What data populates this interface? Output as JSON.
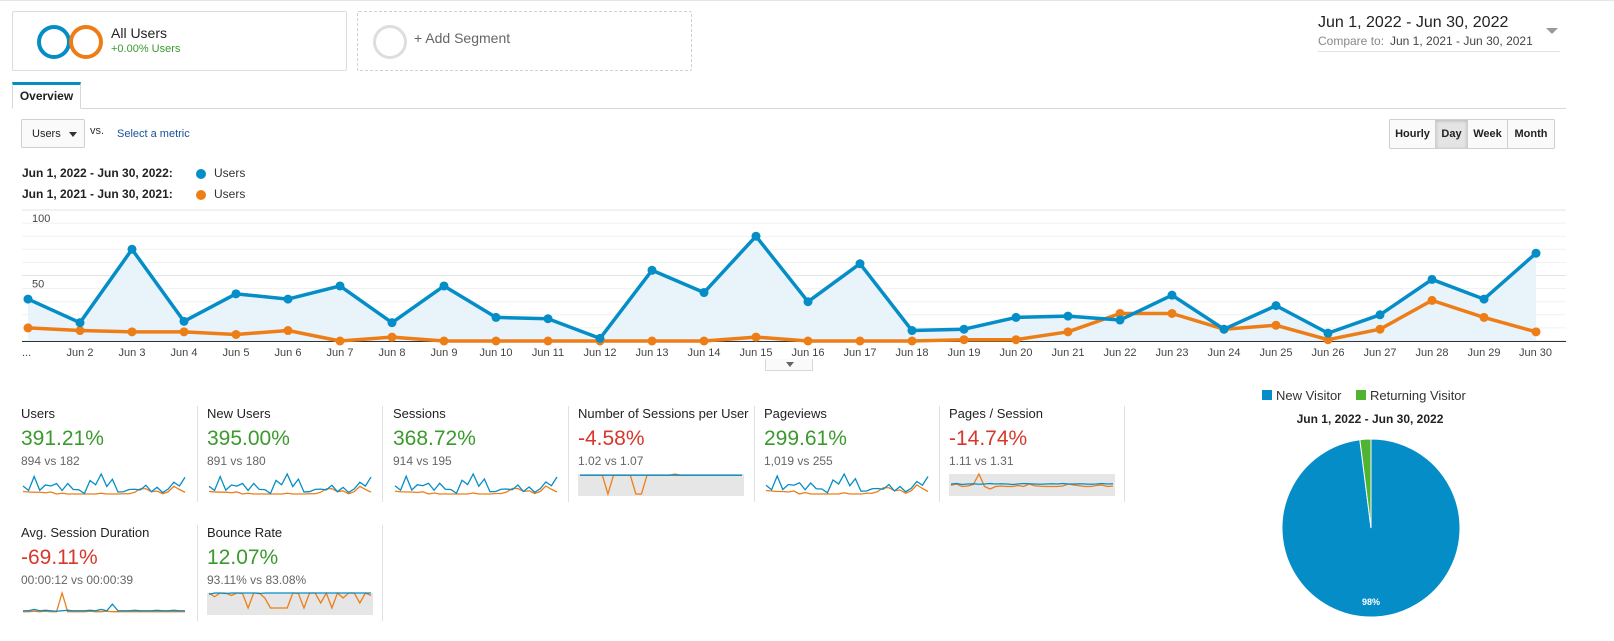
{
  "segments": {
    "all_users": {
      "title": "All Users",
      "subtitle": "+0.00% Users"
    },
    "add_segment": {
      "label": "+ Add Segment"
    }
  },
  "date_range": {
    "main": "Jun 1, 2022 - Jun 30, 2022",
    "compare_label": "Compare to:",
    "compare_value": "Jun 1, 2021 - Jun 30, 2021"
  },
  "tabs": [
    {
      "label": "Overview",
      "active": true
    }
  ],
  "metric_selector": {
    "selected": "Users",
    "vs": "vs.",
    "select_link": "Select a metric"
  },
  "time_buttons": [
    {
      "label": "Hourly",
      "active": false
    },
    {
      "label": "Day",
      "active": true
    },
    {
      "label": "Week",
      "active": false
    },
    {
      "label": "Month",
      "active": false
    }
  ],
  "legend": [
    {
      "range": "Jun 1, 2022 - Jun 30, 2022:",
      "series": "Users",
      "color": "#058dc7"
    },
    {
      "range": "Jun 1, 2021 - Jun 30, 2021:",
      "series": "Users",
      "color": "#ed7e17"
    }
  ],
  "chart_data": {
    "type": "area",
    "categories": [
      "...",
      "Jun 2",
      "Jun 3",
      "Jun 4",
      "Jun 5",
      "Jun 6",
      "Jun 7",
      "Jun 8",
      "Jun 9",
      "Jun 10",
      "Jun 11",
      "Jun 12",
      "Jun 13",
      "Jun 14",
      "Jun 15",
      "Jun 16",
      "Jun 17",
      "Jun 18",
      "Jun 19",
      "Jun 20",
      "Jun 21",
      "Jun 22",
      "Jun 23",
      "Jun 24",
      "Jun 25",
      "Jun 26",
      "Jun 27",
      "Jun 28",
      "Jun 29",
      "Jun 30"
    ],
    "yticks": [
      50,
      100
    ],
    "ylim": [
      0,
      100
    ],
    "series": [
      {
        "name": "Users",
        "color": "#058dc7",
        "values": [
          32,
          14,
          70,
          15,
          36,
          32,
          42,
          14,
          42,
          18,
          17,
          2,
          54,
          37,
          80,
          30,
          59,
          8,
          9,
          18,
          19,
          16,
          35,
          9,
          27,
          6,
          20,
          47,
          32,
          67
        ]
      },
      {
        "name": "Users",
        "color": "#ed7e17",
        "values": [
          10,
          8,
          7,
          7,
          5,
          8,
          0,
          3,
          0,
          0,
          0,
          0,
          0,
          0,
          3,
          0,
          0,
          0,
          1,
          1,
          7,
          21,
          21,
          9,
          12,
          1,
          9,
          31,
          18,
          7
        ]
      }
    ]
  },
  "metric_tiles": [
    {
      "name": "Users",
      "pct": "391.21%",
      "trend": "up",
      "compare": "894 vs 182",
      "spark_a": [
        32,
        14,
        70,
        15,
        36,
        32,
        42,
        14,
        42,
        18,
        17,
        2,
        54,
        37,
        80,
        30,
        59,
        8,
        9,
        18,
        19,
        16,
        35,
        9,
        27,
        6,
        20,
        47,
        32,
        67
      ],
      "spark_b": [
        10,
        8,
        7,
        7,
        5,
        8,
        0,
        3,
        0,
        0,
        0,
        0,
        0,
        0,
        3,
        0,
        0,
        0,
        1,
        1,
        7,
        21,
        21,
        9,
        12,
        1,
        9,
        31,
        18,
        7
      ],
      "shade": false
    },
    {
      "name": "New Users",
      "pct": "395.00%",
      "trend": "up",
      "compare": "891 vs 180",
      "spark_a": [
        30,
        14,
        68,
        15,
        35,
        31,
        41,
        14,
        41,
        18,
        17,
        2,
        53,
        36,
        78,
        29,
        58,
        8,
        9,
        18,
        19,
        16,
        34,
        9,
        26,
        6,
        20,
        46,
        31,
        66
      ],
      "spark_b": [
        10,
        8,
        7,
        7,
        5,
        8,
        0,
        3,
        0,
        0,
        0,
        0,
        0,
        0,
        3,
        0,
        0,
        0,
        1,
        1,
        7,
        20,
        21,
        9,
        12,
        1,
        9,
        30,
        18,
        7
      ],
      "shade": false
    },
    {
      "name": "Sessions",
      "pct": "368.72%",
      "trend": "up",
      "compare": "914 vs 195",
      "spark_a": [
        33,
        15,
        71,
        16,
        37,
        33,
        43,
        15,
        43,
        19,
        18,
        3,
        55,
        38,
        80,
        31,
        60,
        9,
        10,
        19,
        20,
        17,
        36,
        10,
        28,
        7,
        21,
        48,
        33,
        68
      ],
      "spark_b": [
        11,
        9,
        8,
        8,
        6,
        9,
        0,
        4,
        0,
        0,
        0,
        0,
        0,
        0,
        4,
        0,
        0,
        0,
        2,
        2,
        8,
        22,
        22,
        10,
        13,
        2,
        10,
        32,
        19,
        8
      ],
      "shade": false
    },
    {
      "name": "Number of Sessions per User",
      "pct": "-4.58%",
      "trend": "down",
      "compare": "1.02 vs 1.07",
      "spark_a": [
        80,
        80,
        80,
        80,
        80,
        80,
        80,
        80,
        80,
        80,
        80,
        80,
        80,
        80,
        80,
        80,
        80,
        80,
        80,
        80,
        80,
        80,
        80,
        80,
        80,
        80,
        80,
        80,
        80,
        80
      ],
      "spark_b": [
        80,
        80,
        80,
        80,
        80,
        0,
        80,
        80,
        80,
        80,
        0,
        0,
        80,
        80,
        80,
        80,
        80,
        85,
        80,
        80,
        80,
        80,
        80,
        80,
        80,
        80,
        80,
        80,
        80,
        80
      ],
      "shade": true
    },
    {
      "name": "Pageviews",
      "pct": "299.61%",
      "trend": "up",
      "compare": "1,019 vs 255",
      "spark_a": [
        35,
        17,
        72,
        18,
        38,
        35,
        45,
        17,
        44,
        21,
        20,
        5,
        56,
        40,
        80,
        33,
        61,
        11,
        12,
        21,
        22,
        19,
        38,
        12,
        30,
        9,
        23,
        50,
        35,
        70
      ],
      "spark_b": [
        14,
        12,
        10,
        10,
        8,
        12,
        0,
        6,
        0,
        0,
        0,
        0,
        0,
        0,
        5,
        0,
        0,
        0,
        3,
        3,
        10,
        25,
        25,
        13,
        16,
        3,
        13,
        36,
        22,
        10
      ],
      "shade": false
    },
    {
      "name": "Pages / Session",
      "pct": "-14.74%",
      "trend": "down",
      "compare": "1.11 vs 1.31",
      "spark_a": [
        40,
        42,
        38,
        40,
        41,
        39,
        40,
        42,
        40,
        41,
        40,
        38,
        40,
        42,
        41,
        40,
        39,
        40,
        41,
        40,
        42,
        40,
        40,
        41,
        40,
        39,
        40,
        42,
        40,
        41
      ],
      "spark_b": [
        35,
        40,
        30,
        32,
        38,
        80,
        30,
        20,
        30,
        32,
        30,
        30,
        34,
        30,
        40,
        33,
        31,
        30,
        30,
        30,
        32,
        40,
        36,
        33,
        30,
        30,
        34,
        36,
        30,
        32
      ],
      "shade": true
    },
    {
      "name": "Avg. Session Duration",
      "pct": "-69.11%",
      "trend": "down",
      "compare": "00:00:12 vs 00:00:39",
      "spark_a": [
        5,
        5,
        8,
        5,
        6,
        5,
        4,
        5,
        6,
        5,
        5,
        5,
        6,
        5,
        8,
        5,
        20,
        5,
        5,
        5,
        6,
        5,
        5,
        5,
        6,
        5,
        5,
        6,
        5,
        5
      ],
      "spark_b": [
        3,
        3,
        4,
        3,
        4,
        3,
        3,
        45,
        3,
        3,
        3,
        3,
        4,
        3,
        3,
        4,
        3,
        3,
        3,
        3,
        3,
        3,
        3,
        3,
        3,
        3,
        3,
        3,
        3,
        3
      ],
      "shade": false
    },
    {
      "name": "Bounce Rate",
      "pct": "12.07%",
      "trend": "up",
      "compare": "93.11% vs 83.08%",
      "spark_a": [
        75,
        80,
        80,
        78,
        80,
        80,
        80,
        80,
        80,
        78,
        80,
        80,
        80,
        80,
        80,
        80,
        80,
        80,
        80,
        80,
        80,
        80,
        80,
        80,
        80,
        80,
        80,
        80,
        80,
        80
      ],
      "spark_b": [
        80,
        65,
        80,
        80,
        70,
        80,
        78,
        20,
        80,
        80,
        60,
        20,
        20,
        20,
        20,
        80,
        78,
        20,
        80,
        80,
        40,
        80,
        20,
        80,
        60,
        80,
        80,
        40,
        80,
        70
      ],
      "shade": true
    }
  ],
  "pie": {
    "legend": [
      {
        "label": "New Visitor",
        "color": "#058dc7"
      },
      {
        "label": "Returning Visitor",
        "color": "#50b432"
      }
    ],
    "title": "Jun 1, 2022 - Jun 30, 2022",
    "slices": [
      {
        "label": "New Visitor",
        "value": 98,
        "color": "#058dc7"
      },
      {
        "label": "Returning Visitor",
        "value": 2,
        "color": "#50b432"
      }
    ],
    "percent_label": "98%"
  }
}
